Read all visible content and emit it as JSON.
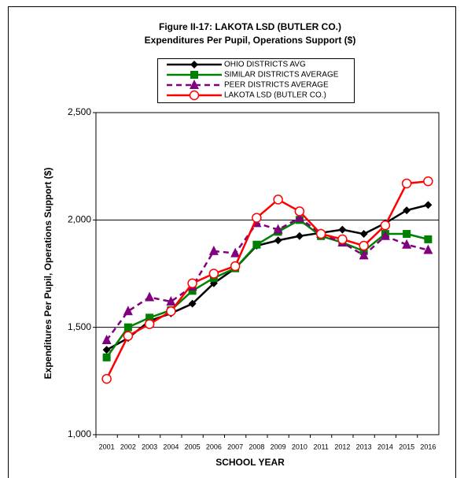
{
  "chart_data": {
    "type": "line",
    "title": "Figure II-17: LAKOTA LSD (BUTLER CO.)",
    "subtitle": "Expenditures Per Pupil, Operations Support ($)",
    "x_label": "SCHOOL YEAR",
    "y_label": "Expenditures Per Pupil, Operations Support ($)",
    "categories": [
      "2001",
      "2002",
      "2003",
      "2004",
      "2005",
      "2006",
      "2007",
      "2008",
      "2009",
      "2010",
      "2011",
      "2012",
      "2013",
      "2014",
      "2015",
      "2016"
    ],
    "series": [
      {
        "name": "OHIO DISTRICTS AVG",
        "color": "#000000",
        "marker": "diamond",
        "dashed": false,
        "values": [
          1395,
          1450,
          1530,
          1565,
          1610,
          1705,
          1775,
          1880,
          1905,
          1925,
          1940,
          1955,
          1935,
          1985,
          2045,
          2070
        ]
      },
      {
        "name": "SIMILAR DISTRICTS AVERAGE",
        "color": "#008000",
        "marker": "square",
        "dashed": false,
        "values": [
          1360,
          1500,
          1545,
          1580,
          1670,
          1730,
          1775,
          1885,
          1945,
          2000,
          1925,
          1895,
          1855,
          1935,
          1935,
          1910
        ]
      },
      {
        "name": "PEER DISTRICTS AVERAGE",
        "color": "#800080",
        "marker": "triangle",
        "dashed": true,
        "values": [
          1440,
          1575,
          1640,
          1620,
          1690,
          1855,
          1845,
          1985,
          1955,
          2010,
          1935,
          1895,
          1835,
          1925,
          1885,
          1860
        ]
      },
      {
        "name": "LAKOTA LSD (BUTLER CO.)",
        "color": "#ff0000",
        "marker": "circle",
        "dashed": false,
        "values": [
          1260,
          1460,
          1515,
          1575,
          1705,
          1750,
          1785,
          2010,
          2095,
          2040,
          1935,
          1910,
          1880,
          1975,
          2170,
          2180
        ]
      }
    ],
    "ylim": [
      1000,
      2500
    ],
    "yticks": [
      {
        "value": 1000,
        "label": "1,000"
      },
      {
        "value": 1500,
        "label": "1,500"
      },
      {
        "value": 2000,
        "label": "2,000"
      },
      {
        "value": 2500,
        "label": "2,500"
      }
    ],
    "grid": true
  }
}
